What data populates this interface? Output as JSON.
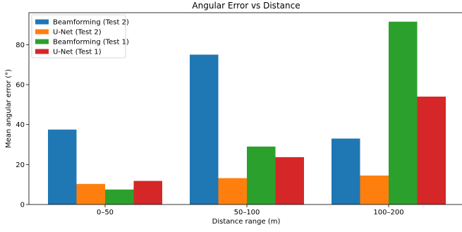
{
  "chart_data": {
    "type": "bar",
    "title": "Angular Error vs Distance",
    "xlabel": "Distance range (m)",
    "ylabel": "Mean angular error (°)",
    "categories": [
      "0–50",
      "50–100",
      "100–200"
    ],
    "ylim": [
      0,
      96
    ],
    "yticks": [
      0,
      20,
      40,
      60,
      80
    ],
    "grid": false,
    "legend_position": "top-left",
    "series": [
      {
        "name": "Beamforming (Test 2)",
        "color": "#1f77b4",
        "values": [
          37.5,
          75.0,
          33.0
        ]
      },
      {
        "name": "U-Net (Test 2)",
        "color": "#ff7f0e",
        "values": [
          10.3,
          13.2,
          14.5
        ]
      },
      {
        "name": "Beamforming (Test 1)",
        "color": "#2ca02c",
        "values": [
          7.5,
          29.0,
          91.5
        ]
      },
      {
        "name": "U-Net (Test 1)",
        "color": "#d62728",
        "values": [
          11.8,
          23.7,
          54.0
        ]
      }
    ]
  }
}
